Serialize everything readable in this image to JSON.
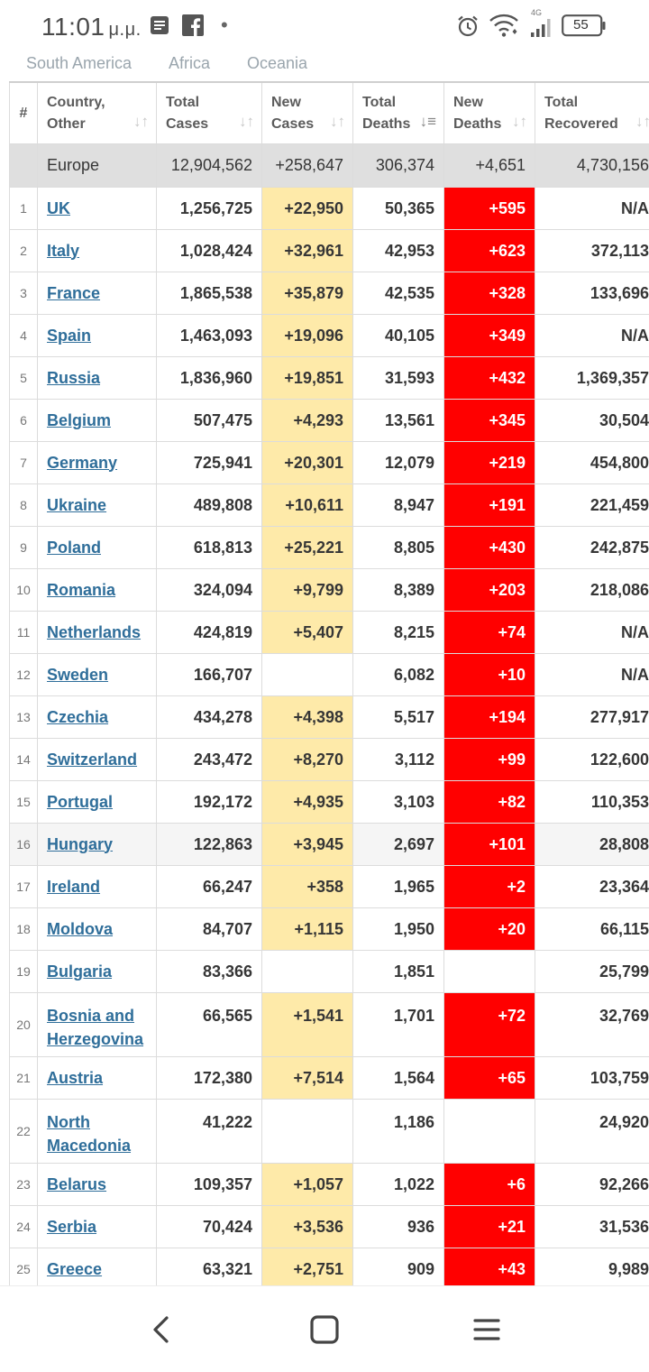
{
  "status": {
    "time": "11:01",
    "ampm": "μ.μ.",
    "dot": "•",
    "network": "4G",
    "battery": "55"
  },
  "tabs": [
    "South America",
    "Africa",
    "Oceania"
  ],
  "table": {
    "headers": [
      {
        "line1": "#",
        "line2": ""
      },
      {
        "line1": "Country,",
        "line2": "Other"
      },
      {
        "line1": "Total",
        "line2": "Cases"
      },
      {
        "line1": "New",
        "line2": "Cases"
      },
      {
        "line1": "Total",
        "line2": "Deaths"
      },
      {
        "line1": "New",
        "line2": "Deaths"
      },
      {
        "line1": "Total",
        "line2": "Recovered"
      }
    ],
    "region": {
      "name": "Europe",
      "total_cases": "12,904,562",
      "new_cases": "+258,647",
      "total_deaths": "306,374",
      "new_deaths": "+4,651",
      "total_recovered": "4,730,156"
    },
    "rows": [
      {
        "n": "1",
        "country": "UK",
        "total_cases": "1,256,725",
        "new_cases": "+22,950",
        "total_deaths": "50,365",
        "new_deaths": "+595",
        "total_recovered": "N/A"
      },
      {
        "n": "2",
        "country": "Italy",
        "total_cases": "1,028,424",
        "new_cases": "+32,961",
        "total_deaths": "42,953",
        "new_deaths": "+623",
        "total_recovered": "372,113"
      },
      {
        "n": "3",
        "country": "France",
        "total_cases": "1,865,538",
        "new_cases": "+35,879",
        "total_deaths": "42,535",
        "new_deaths": "+328",
        "total_recovered": "133,696"
      },
      {
        "n": "4",
        "country": "Spain",
        "total_cases": "1,463,093",
        "new_cases": "+19,096",
        "total_deaths": "40,105",
        "new_deaths": "+349",
        "total_recovered": "N/A"
      },
      {
        "n": "5",
        "country": "Russia",
        "total_cases": "1,836,960",
        "new_cases": "+19,851",
        "total_deaths": "31,593",
        "new_deaths": "+432",
        "total_recovered": "1,369,357"
      },
      {
        "n": "6",
        "country": "Belgium",
        "total_cases": "507,475",
        "new_cases": "+4,293",
        "total_deaths": "13,561",
        "new_deaths": "+345",
        "total_recovered": "30,504"
      },
      {
        "n": "7",
        "country": "Germany",
        "total_cases": "725,941",
        "new_cases": "+20,301",
        "total_deaths": "12,079",
        "new_deaths": "+219",
        "total_recovered": "454,800"
      },
      {
        "n": "8",
        "country": "Ukraine",
        "total_cases": "489,808",
        "new_cases": "+10,611",
        "total_deaths": "8,947",
        "new_deaths": "+191",
        "total_recovered": "221,459"
      },
      {
        "n": "9",
        "country": "Poland",
        "total_cases": "618,813",
        "new_cases": "+25,221",
        "total_deaths": "8,805",
        "new_deaths": "+430",
        "total_recovered": "242,875"
      },
      {
        "n": "10",
        "country": "Romania",
        "total_cases": "324,094",
        "new_cases": "+9,799",
        "total_deaths": "8,389",
        "new_deaths": "+203",
        "total_recovered": "218,086"
      },
      {
        "n": "11",
        "country": "Netherlands",
        "total_cases": "424,819",
        "new_cases": "+5,407",
        "total_deaths": "8,215",
        "new_deaths": "+74",
        "total_recovered": "N/A"
      },
      {
        "n": "12",
        "country": "Sweden",
        "total_cases": "166,707",
        "new_cases": "",
        "total_deaths": "6,082",
        "new_deaths": "+10",
        "total_recovered": "N/A"
      },
      {
        "n": "13",
        "country": "Czechia",
        "total_cases": "434,278",
        "new_cases": "+4,398",
        "total_deaths": "5,517",
        "new_deaths": "+194",
        "total_recovered": "277,917"
      },
      {
        "n": "14",
        "country": "Switzerland",
        "total_cases": "243,472",
        "new_cases": "+8,270",
        "total_deaths": "3,112",
        "new_deaths": "+99",
        "total_recovered": "122,600"
      },
      {
        "n": "15",
        "country": "Portugal",
        "total_cases": "192,172",
        "new_cases": "+4,935",
        "total_deaths": "3,103",
        "new_deaths": "+82",
        "total_recovered": "110,353"
      },
      {
        "n": "16",
        "country": "Hungary",
        "total_cases": "122,863",
        "new_cases": "+3,945",
        "total_deaths": "2,697",
        "new_deaths": "+101",
        "total_recovered": "28,808"
      },
      {
        "n": "17",
        "country": "Ireland",
        "total_cases": "66,247",
        "new_cases": "+358",
        "total_deaths": "1,965",
        "new_deaths": "+2",
        "total_recovered": "23,364"
      },
      {
        "n": "18",
        "country": "Moldova",
        "total_cases": "84,707",
        "new_cases": "+1,115",
        "total_deaths": "1,950",
        "new_deaths": "+20",
        "total_recovered": "66,115"
      },
      {
        "n": "19",
        "country": "Bulgaria",
        "total_cases": "83,366",
        "new_cases": "",
        "total_deaths": "1,851",
        "new_deaths": "",
        "total_recovered": "25,799"
      },
      {
        "n": "20",
        "country": "Bosnia and Herzegovina",
        "total_cases": "66,565",
        "new_cases": "+1,541",
        "total_deaths": "1,701",
        "new_deaths": "+72",
        "total_recovered": "32,769"
      },
      {
        "n": "21",
        "country": "Austria",
        "total_cases": "172,380",
        "new_cases": "+7,514",
        "total_deaths": "1,564",
        "new_deaths": "+65",
        "total_recovered": "103,759"
      },
      {
        "n": "22",
        "country": "North Macedonia",
        "total_cases": "41,222",
        "new_cases": "",
        "total_deaths": "1,186",
        "new_deaths": "",
        "total_recovered": "24,920"
      },
      {
        "n": "23",
        "country": "Belarus",
        "total_cases": "109,357",
        "new_cases": "+1,057",
        "total_deaths": "1,022",
        "new_deaths": "+6",
        "total_recovered": "92,266"
      },
      {
        "n": "24",
        "country": "Serbia",
        "total_cases": "70,424",
        "new_cases": "+3,536",
        "total_deaths": "936",
        "new_deaths": "+21",
        "total_recovered": "31,536"
      },
      {
        "n": "25",
        "country": "Greece",
        "total_cases": "63,321",
        "new_cases": "+2,751",
        "total_deaths": "909",
        "new_deaths": "+43",
        "total_recovered": "9,989"
      }
    ]
  },
  "colors": {
    "new_cases_fill": "#feeaa9",
    "new_deaths_fill": "#ff0000",
    "link": "#2f6e9a",
    "region_row": "#dfdfdf"
  },
  "icons": {
    "status": [
      "news-icon",
      "facebook-icon",
      "alarm-icon",
      "wifi-icon",
      "signal-icon",
      "battery-icon"
    ],
    "nav": [
      "back-icon",
      "home-icon",
      "recents-icon"
    ]
  }
}
